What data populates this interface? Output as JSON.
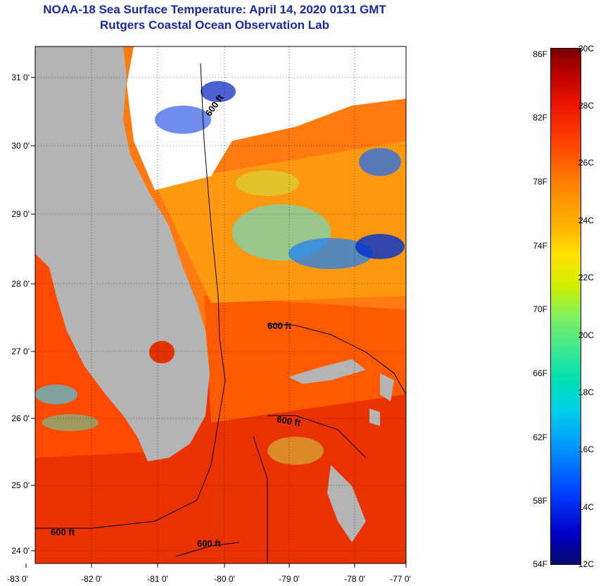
{
  "title": {
    "line1": "NOAA-18 Sea Surface Temperature:  April 14, 2020 0131 GMT",
    "line2": "Rutgers Coastal Ocean Observation Lab"
  },
  "axes": {
    "lat_labels": [
      "31 0'",
      "30 0'",
      "29 0'",
      "28 0'",
      "27 0'",
      "26 0'",
      "25 0'",
      "24 0'"
    ],
    "lon_labels": [
      "-83 0'",
      "-82 0'",
      "-81 0'",
      "-80 0'",
      "-79 0'",
      "-78 0'",
      "-77 0'"
    ]
  },
  "contours": {
    "label": "600 ft",
    "label_count": 5
  },
  "colorbar": {
    "fahrenheit": [
      "86F",
      "82F",
      "78F",
      "74F",
      "70F",
      "66F",
      "62F",
      "58F",
      "54F"
    ],
    "celsius": [
      "30C",
      "28C",
      "26C",
      "24C",
      "22C",
      "20C",
      "18C",
      "16C",
      "14C",
      "12C"
    ]
  },
  "colors": {
    "land": "#b4b4b4",
    "cloud": "#ffffff",
    "title": "#1a2a9c",
    "warm_water": "#e82a00",
    "mid_water": "#ff8a00",
    "cool_water": "#40d0e0",
    "cold_water": "#0020d0"
  }
}
